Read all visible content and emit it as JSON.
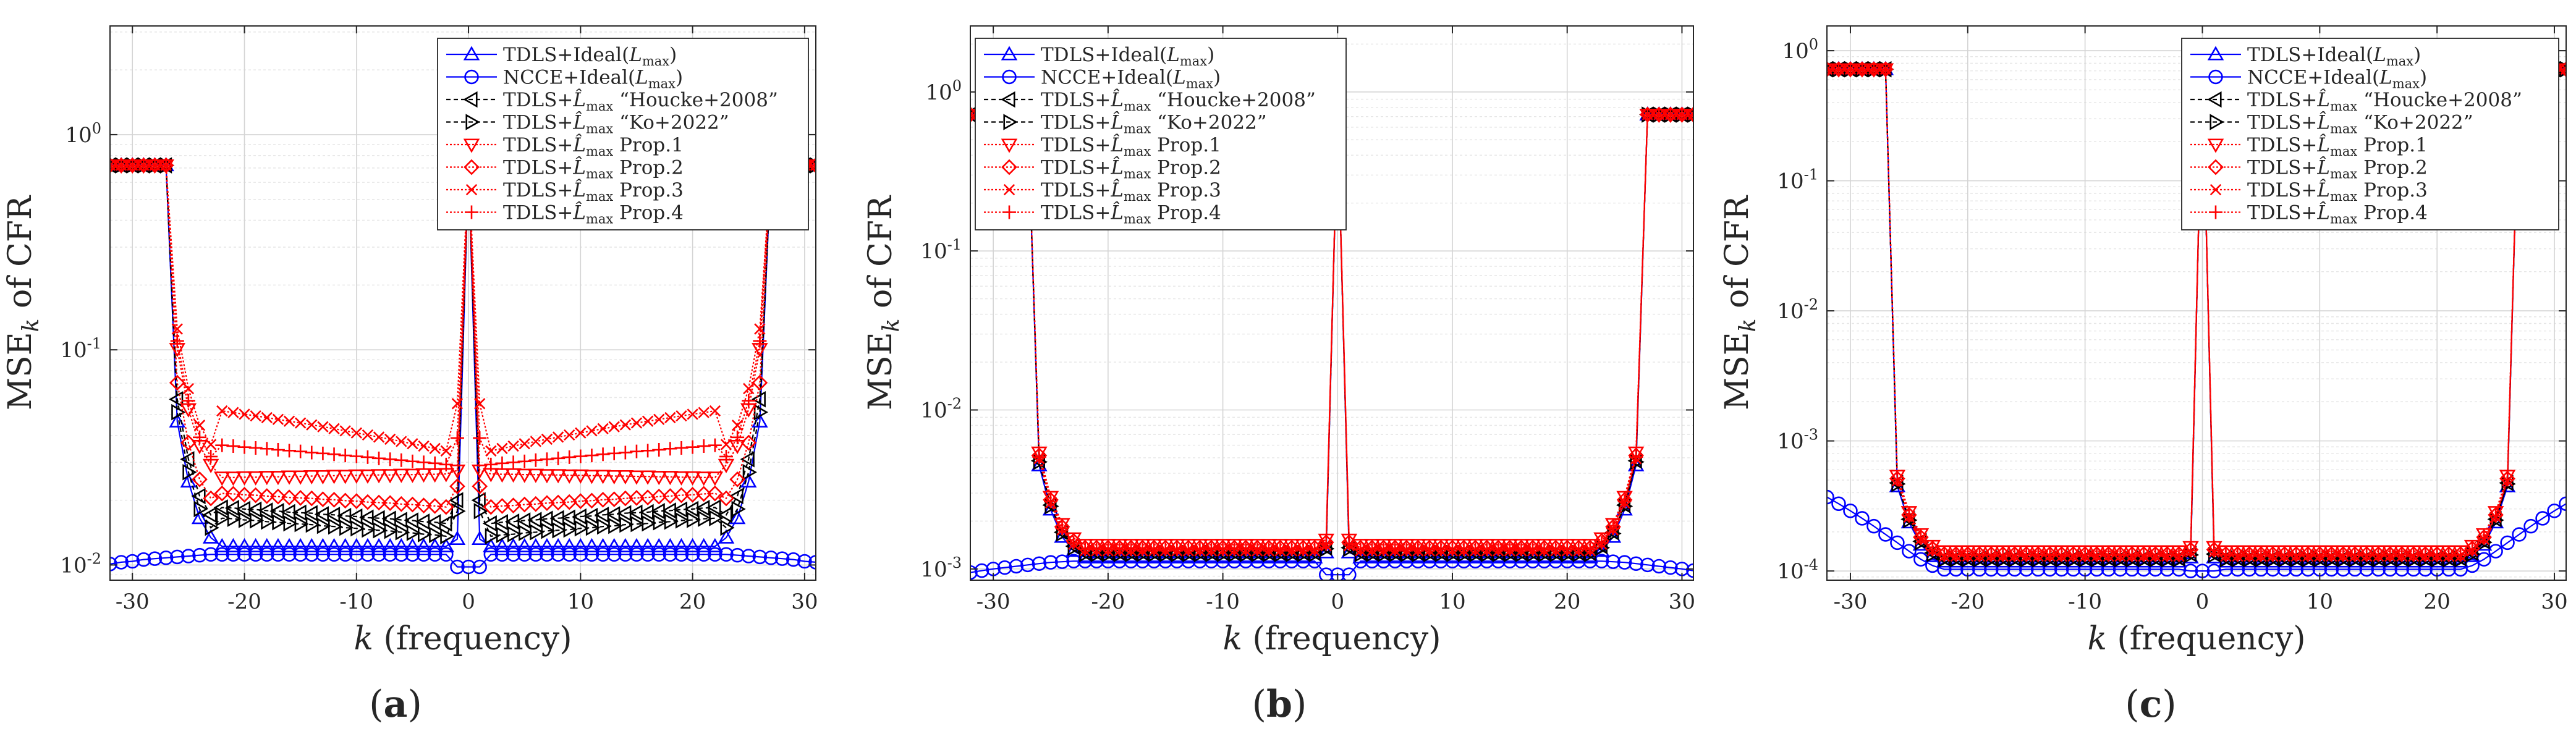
{
  "figure": {
    "panel_labels": [
      "(a)",
      "(b)",
      "(c)"
    ]
  },
  "chart_data": [
    {
      "type": "line",
      "panel": "(a)",
      "xlabel": "k (frequency)",
      "ylabel": "MSE_k of CFR",
      "xlim": [
        -32,
        31
      ],
      "ylim": [
        0.0085,
        3.2
      ],
      "yscale": "log",
      "grid": true,
      "legend_position": "top-right",
      "xticks": [
        -30,
        -20,
        -10,
        0,
        10,
        20,
        30
      ],
      "xtick_labels": [
        "-30",
        "-20",
        "-10",
        "0",
        "10",
        "20",
        "30"
      ],
      "yticks": [
        0.01,
        0.1,
        1
      ],
      "ytick_labels": [
        "10^{-2}",
        "10^{-1}",
        "10^{0}"
      ],
      "profiles": {
        "TDLS+Ideal(Lmax)": {
          "plateau": 0.0122,
          "mid": 0.0122,
          "gap": 0.35,
          "arch": 0
        },
        "NCCE+Ideal(Lmax)": {
          "ncce": true,
          "edge": 0.0101,
          "center": 0.0112,
          "dip": 0.0098
        },
        "TDLS+L̂max \"Houcke+2008\"": {
          "plateau": 0.0155,
          "mid": 0.0185,
          "gap": 0.4,
          "arch": 0
        },
        "TDLS+L̂max \"Ko+2022\"": {
          "plateau": 0.0135,
          "mid": 0.0165,
          "gap": 0.4,
          "arch": 0
        },
        "TDLS+L̂max Prop.1": {
          "plateau": 0.0265,
          "mid": 0.0255,
          "gap": 0.4,
          "arch": 0
        },
        "TDLS+L̂max Prop.2": {
          "plateau": 0.0185,
          "mid": 0.0215,
          "gap": 0.4,
          "arch": 0
        },
        "TDLS+L̂max Prop.3": {
          "plateau": 0.033,
          "mid": 0.052,
          "gap": 0.4,
          "arch": 0
        },
        "TDLS+L̂max Prop.4": {
          "plateau": 0.029,
          "mid": 0.036,
          "gap": 0.4,
          "arch": 0
        }
      },
      "series": []
    },
    {
      "type": "line",
      "panel": "(b)",
      "xlabel": "k (frequency)",
      "ylabel": "MSE_k of CFR",
      "xlim": [
        -32,
        31
      ],
      "ylim": [
        0.00085,
        2.6
      ],
      "yscale": "log",
      "grid": true,
      "legend_position": "top-left",
      "xticks": [
        -30,
        -20,
        -10,
        0,
        10,
        20,
        30
      ],
      "xtick_labels": [
        "-30",
        "-20",
        "-10",
        "0",
        "10",
        "20",
        "30"
      ],
      "yticks": [
        0.001,
        0.01,
        0.1,
        1
      ],
      "ytick_labels": [
        "10^{-3}",
        "10^{-2}",
        "10^{-1}",
        "10^{0}"
      ],
      "profiles": {
        "TDLS+Ideal(Lmax)": {
          "plateau": 0.00118,
          "mid": 0.00118,
          "gap": 0.6,
          "arch": 0
        },
        "NCCE+Ideal(Lmax)": {
          "ncce": true,
          "edge": 0.00095,
          "center": 0.00112,
          "dip": 0.00092
        },
        "TDLS+L̂max \"Houcke+2008\"": {
          "plateau": 0.00126,
          "mid": 0.00126,
          "gap": 0.6,
          "arch": 0
        },
        "TDLS+L̂max \"Ko+2022\"": {
          "plateau": 0.00124,
          "mid": 0.00124,
          "gap": 0.6,
          "arch": 0
        },
        "TDLS+L̂max Prop.1": {
          "plateau": 0.00142,
          "mid": 0.00142,
          "gap": 0.6,
          "arch": 0
        },
        "TDLS+L̂max Prop.2": {
          "plateau": 0.00136,
          "mid": 0.00136,
          "gap": 0.6,
          "arch": 0
        },
        "TDLS+L̂max Prop.3": {
          "plateau": 0.0013,
          "mid": 0.0013,
          "gap": 0.6,
          "arch": 0
        },
        "TDLS+L̂max Prop.4": {
          "plateau": 0.00133,
          "mid": 0.00133,
          "gap": 0.6,
          "arch": 0
        }
      },
      "series": []
    },
    {
      "type": "line",
      "panel": "(c)",
      "xlabel": "k (frequency)",
      "ylabel": "MSE_k of CFR",
      "xlim": [
        -32,
        31
      ],
      "ylim": [
        8.5e-05,
        1.55
      ],
      "yscale": "log",
      "grid": true,
      "legend_position": "top-right",
      "xticks": [
        -30,
        -20,
        -10,
        0,
        10,
        20,
        30
      ],
      "xtick_labels": [
        "-30",
        "-20",
        "-10",
        "0",
        "10",
        "20",
        "30"
      ],
      "yticks": [
        0.0001,
        0.001,
        0.01,
        0.1,
        1
      ],
      "ytick_labels": [
        "10^{-4}",
        "10^{-3}",
        "10^{-2}",
        "10^{-1}",
        "10^{0}"
      ],
      "profiles": {
        "TDLS+Ideal(Lmax)": {
          "plateau": 0.000118,
          "mid": 0.000118,
          "gap": 0.7,
          "arch": 0
        },
        "NCCE+Ideal(Lmax)": {
          "ncce": true,
          "edge": 0.00037,
          "center": 0.000103,
          "dip": 0.0001
        },
        "TDLS+L̂max \"Houcke+2008\"": {
          "plateau": 0.000125,
          "mid": 0.000125,
          "gap": 0.7,
          "arch": 0
        },
        "TDLS+L̂max \"Ko+2022\"": {
          "plateau": 0.000123,
          "mid": 0.000123,
          "gap": 0.7,
          "arch": 0
        },
        "TDLS+L̂max Prop.1": {
          "plateau": 0.000142,
          "mid": 0.000142,
          "gap": 0.7,
          "arch": 0
        },
        "TDLS+L̂max Prop.2": {
          "plateau": 0.000135,
          "mid": 0.000135,
          "gap": 0.7,
          "arch": 0
        },
        "TDLS+L̂max Prop.3": {
          "plateau": 0.00013,
          "mid": 0.00013,
          "gap": 0.7,
          "arch": 0
        },
        "TDLS+L̂max Prop.4": {
          "plateau": 0.000133,
          "mid": 0.000133,
          "gap": 0.7,
          "arch": 0
        }
      },
      "series": []
    }
  ],
  "legend_entries": [
    {
      "label": "TDLS+Ideal(Lmax)",
      "prefix": "TDLS+Ideal(",
      "hat": false,
      "suffix": ")",
      "color": "#0000ff",
      "marker": "triangle-up",
      "dash": ""
    },
    {
      "label": "NCCE+Ideal(Lmax)",
      "prefix": "NCCE+Ideal(",
      "hat": false,
      "suffix": ")",
      "color": "#0000ff",
      "marker": "circle",
      "dash": ""
    },
    {
      "label": "TDLS+L̂max \"Houcke+2008\"",
      "prefix": "TDLS+",
      "hat": true,
      "suffix": " “Houcke+2008”",
      "color": "#000000",
      "marker": "triangle-left",
      "dash": "7,5"
    },
    {
      "label": "TDLS+L̂max \"Ko+2022\"",
      "prefix": "TDLS+",
      "hat": true,
      "suffix": " “Ko+2022”",
      "color": "#000000",
      "marker": "triangle-right",
      "dash": "7,5"
    },
    {
      "label": "TDLS+L̂max Prop.1",
      "prefix": "TDLS+",
      "hat": true,
      "suffix": " Prop.1",
      "color": "#ff0000",
      "marker": "triangle-down",
      "dash": "3,3"
    },
    {
      "label": "TDLS+L̂max Prop.2",
      "prefix": "TDLS+",
      "hat": true,
      "suffix": " Prop.2",
      "color": "#ff0000",
      "marker": "diamond",
      "dash": "3,3"
    },
    {
      "label": "TDLS+L̂max Prop.3",
      "prefix": "TDLS+",
      "hat": true,
      "suffix": " Prop.3",
      "color": "#ff0000",
      "marker": "x",
      "dash": "3,3"
    },
    {
      "label": "TDLS+L̂max Prop.4",
      "prefix": "TDLS+",
      "hat": true,
      "suffix": " Prop.4",
      "color": "#ff0000",
      "marker": "plus",
      "dash": "3,3"
    }
  ],
  "data_generation": {
    "x_range": [
      -32,
      31
    ],
    "null_subcarriers": [
      -32,
      -31,
      -30,
      -29,
      -28,
      -27,
      0,
      27,
      28,
      29,
      30,
      31
    ],
    "null_mse": 0.72
  }
}
